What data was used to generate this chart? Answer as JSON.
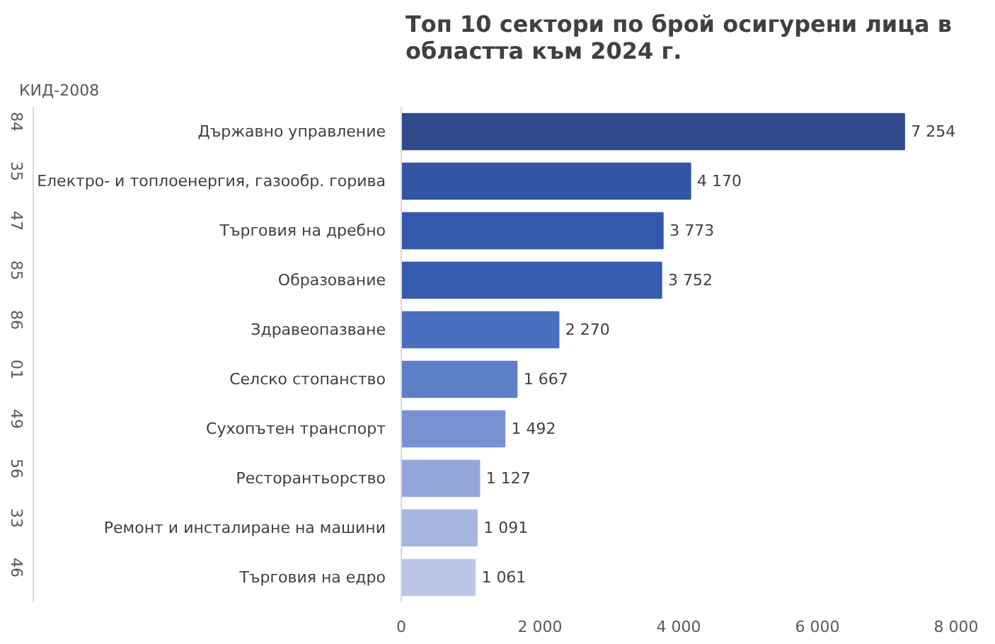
{
  "chart_data": {
    "type": "bar",
    "orientation": "horizontal",
    "title": "Топ 10 сектори по брой осигурени лица в областта към 2024 г.",
    "categories": [
      "Държавно управление",
      "Електро- и топлоенергия, газообр. горива",
      "Търговия на дребно",
      "Образование",
      "Здравеопазване",
      "Селско стопанство",
      "Сухопътен транспорт",
      "Ресторантьорство",
      "Ремонт и инсталиране на машини",
      "Търговия на едро"
    ],
    "values": [
      7254,
      4170,
      3773,
      3752,
      2270,
      1667,
      1492,
      1127,
      1091,
      1061
    ],
    "colors": [
      "#2f4b8c",
      "#3256a3",
      "#3459ac",
      "#365cb0",
      "#4a6fc0",
      "#5d7fc8",
      "#7891d0",
      "#95a7da",
      "#a7b6e0",
      "#bcc7e8"
    ],
    "xlim": [
      0,
      8000
    ],
    "xticks": [
      0,
      {
        "value": 2000,
        "label": "2 000"
      },
      {
        "value": 4000,
        "label": "4 000"
      },
      {
        "value": 6000,
        "label": "6 000"
      },
      {
        "value": 8000,
        "label": "8 000"
      }
    ],
    "data_labels": true,
    "grid": false,
    "annotations": [
      "КИД-2008",
      "84",
      "35",
      "47",
      "85",
      "86",
      "01",
      "49",
      "56",
      "33",
      "46"
    ]
  }
}
